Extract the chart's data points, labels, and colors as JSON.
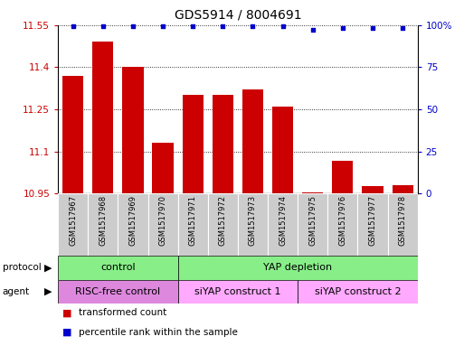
{
  "title": "GDS5914 / 8004691",
  "samples": [
    "GSM1517967",
    "GSM1517968",
    "GSM1517969",
    "GSM1517970",
    "GSM1517971",
    "GSM1517972",
    "GSM1517973",
    "GSM1517974",
    "GSM1517975",
    "GSM1517976",
    "GSM1517977",
    "GSM1517978"
  ],
  "transformed_counts": [
    11.37,
    11.49,
    11.4,
    11.13,
    11.3,
    11.3,
    11.32,
    11.26,
    10.955,
    11.065,
    10.975,
    10.98
  ],
  "percentile_ranks": [
    99,
    99,
    99,
    99,
    99,
    99,
    99,
    99,
    97,
    98,
    98,
    98
  ],
  "ylim_left": [
    10.95,
    11.55
  ],
  "ylim_right": [
    0,
    100
  ],
  "yticks_left": [
    10.95,
    11.1,
    11.25,
    11.4,
    11.55
  ],
  "yticks_right": [
    0,
    25,
    50,
    75,
    100
  ],
  "bar_color": "#cc0000",
  "dot_color": "#0000cc",
  "protocol_spans": [
    [
      0,
      3,
      "control"
    ],
    [
      4,
      11,
      "YAP depletion"
    ]
  ],
  "protocol_color": "#88ee88",
  "agent_spans": [
    [
      0,
      3,
      "RISC-free control"
    ],
    [
      4,
      7,
      "siYAP construct 1"
    ],
    [
      8,
      11,
      "siYAP construct 2"
    ]
  ],
  "agent_color_dark": "#dd88dd",
  "agent_color_light": "#ffaaff",
  "legend_items": [
    "transformed count",
    "percentile rank within the sample"
  ],
  "legend_colors": [
    "#cc0000",
    "#0000cc"
  ],
  "sample_bg_color": "#cccccc",
  "grid_color": "#000000"
}
